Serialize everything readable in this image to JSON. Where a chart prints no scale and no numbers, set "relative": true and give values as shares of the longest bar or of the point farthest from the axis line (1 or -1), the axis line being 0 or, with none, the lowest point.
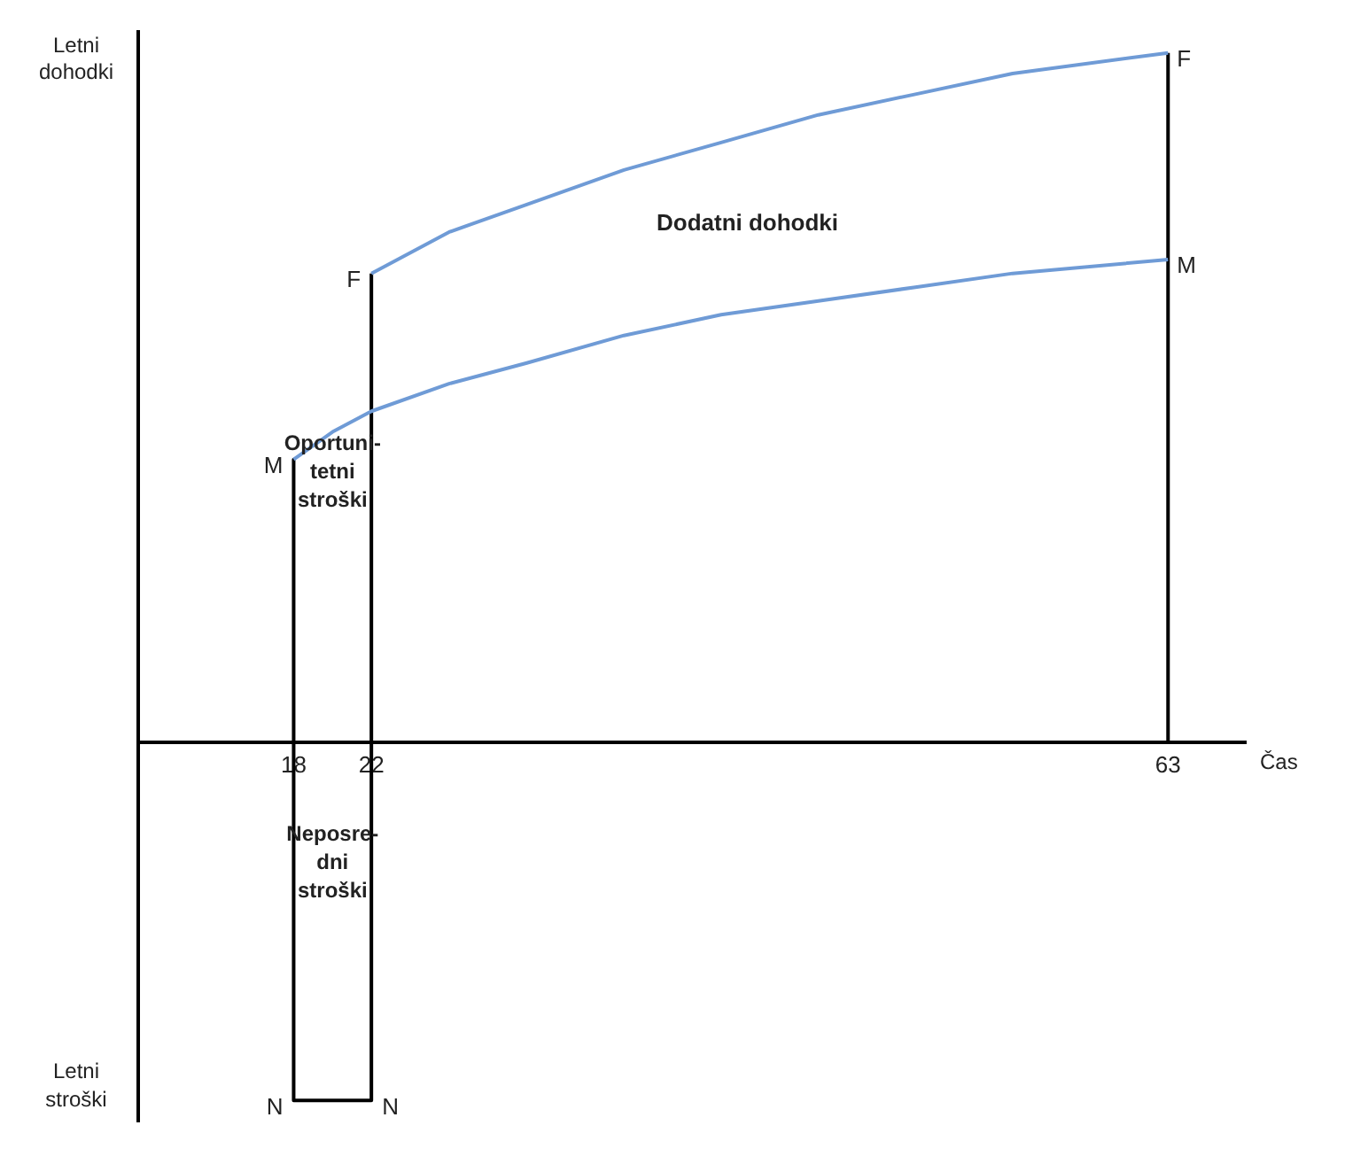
{
  "chart_data": {
    "type": "line",
    "relative": true,
    "xlabel": "Čas",
    "ylabel": "Letni dohodki",
    "xlim": [
      10,
      67
    ],
    "xticks": [
      18,
      22,
      63
    ],
    "legend": false,
    "marker": "none",
    "line_style": "solid",
    "series": [
      {
        "name": "M",
        "color": "#6f9bd6",
        "x": [
          18,
          20,
          22,
          26,
          30,
          35,
          40,
          45,
          50,
          55,
          63
        ],
        "values": [
          0.41,
          0.45,
          0.48,
          0.52,
          0.55,
          0.59,
          0.62,
          0.64,
          0.66,
          0.68,
          0.7
        ]
      },
      {
        "name": "F",
        "color": "#6f9bd6",
        "x": [
          22,
          26,
          30,
          35,
          40,
          45,
          50,
          55,
          63
        ],
        "values": [
          0.68,
          0.74,
          0.78,
          0.83,
          0.87,
          0.91,
          0.94,
          0.97,
          1.0
        ]
      },
      {
        "color": "#000000",
        "x": [
          18,
          18,
          22,
          22
        ],
        "values": [
          0.41,
          -0.52,
          -0.52,
          0.68
        ]
      },
      {
        "color": "#000000",
        "x": [
          63,
          63
        ],
        "values": [
          0,
          1.0
        ]
      }
    ],
    "annotations": [
      "Dodatni dohodki",
      "Oportuni-\ntetni\nstroški",
      "Neposre-\ndni\nstroški",
      "Letni stroški",
      {
        "text": "N",
        "x": 18,
        "y": -0.52
      },
      {
        "text": "N",
        "x": 22,
        "y": -0.52
      }
    ]
  }
}
